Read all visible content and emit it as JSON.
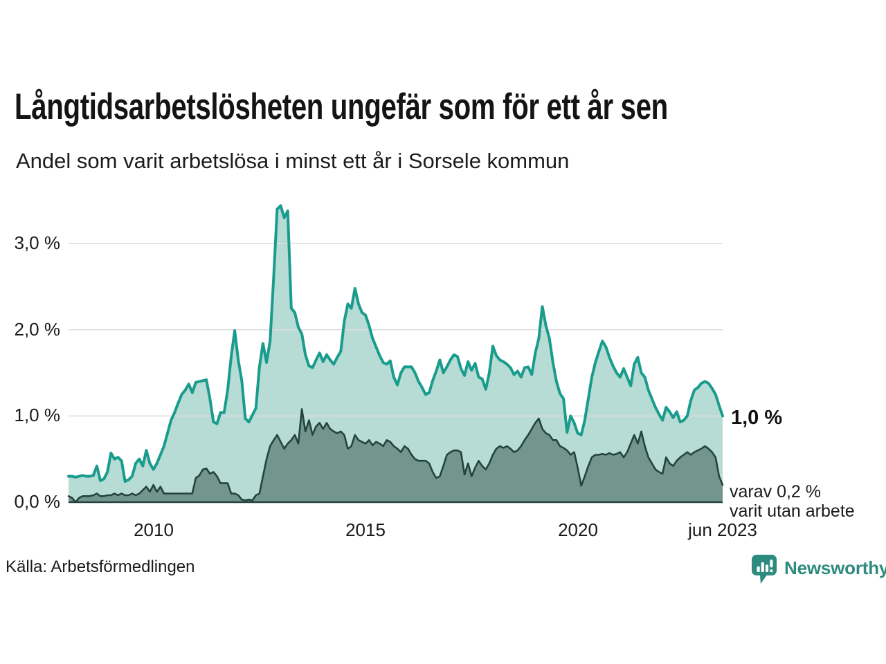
{
  "header": {
    "title": "Långtidsarbetslösheten ungefär som för ett år sen",
    "subtitle": "Andel som varit arbetslösa i minst ett år i Sorsele kommun"
  },
  "axes": {
    "y_tick_labels": [
      "3,0 %",
      "2,0 %",
      "1,0 %",
      "0,0 %"
    ],
    "x_tick_labels": [
      "2010",
      "2015",
      "2020",
      "jun 2023"
    ]
  },
  "annotations": {
    "latest_total": "1,0 %",
    "latest_sub_line1": "varav 0,2 %",
    "latest_sub_line2": "varit utan arbete"
  },
  "footer": {
    "source": "Källa: Arbetsförmedlingen",
    "brand": "Newsworthy"
  },
  "colors": {
    "total_line": "#1a9c8d",
    "total_fill": "#b7dbd5",
    "sub_line": "#25433d",
    "sub_fill": "#72968e",
    "gridline": "#dcdcdc",
    "brand_teal": "#2e8b80"
  },
  "chart_data": {
    "type": "area",
    "title": "Långtidsarbetslösheten ungefär som för ett år sen",
    "subtitle": "Andel som varit arbetslösa i minst ett år i Sorsele kommun",
    "unit": "%",
    "frequency": "monthly",
    "x_start": "2008-01",
    "x_end": "2023-06",
    "ylim": [
      0,
      3.5
    ],
    "gridlines": [
      1.0,
      2.0,
      3.0
    ],
    "grid": "horizontal-only",
    "legend_position": "none",
    "x_ticks": [
      {
        "label": "2010",
        "month_index": 24
      },
      {
        "label": "2015",
        "month_index": 84
      },
      {
        "label": "2020",
        "month_index": 144
      },
      {
        "label": "jun 2023",
        "month_index": 185
      }
    ],
    "series": [
      {
        "name": "Andel som varit arbetslösa i minst ett år",
        "end_label": "1,0 %",
        "color": "#1a9c8d",
        "fill": "#b7dbd5",
        "values": [
          0.3,
          0.3,
          0.29,
          0.3,
          0.31,
          0.3,
          0.3,
          0.31,
          0.42,
          0.25,
          0.27,
          0.35,
          0.57,
          0.5,
          0.52,
          0.48,
          0.24,
          0.26,
          0.3,
          0.45,
          0.5,
          0.42,
          0.6,
          0.45,
          0.38,
          0.45,
          0.55,
          0.65,
          0.8,
          0.95,
          1.04,
          1.15,
          1.25,
          1.3,
          1.37,
          1.27,
          1.39,
          1.4,
          1.41,
          1.42,
          1.2,
          0.93,
          0.91,
          1.04,
          1.04,
          1.3,
          1.69,
          1.99,
          1.65,
          1.41,
          0.97,
          0.93,
          1.01,
          1.09,
          1.57,
          1.84,
          1.62,
          1.87,
          2.6,
          3.4,
          3.44,
          3.3,
          3.38,
          2.25,
          2.2,
          2.03,
          1.95,
          1.71,
          1.58,
          1.56,
          1.65,
          1.73,
          1.63,
          1.71,
          1.65,
          1.6,
          1.68,
          1.75,
          2.1,
          2.3,
          2.25,
          2.48,
          2.3,
          2.2,
          2.17,
          2.05,
          1.9,
          1.8,
          1.7,
          1.62,
          1.6,
          1.64,
          1.45,
          1.36,
          1.5,
          1.57,
          1.57,
          1.57,
          1.5,
          1.4,
          1.33,
          1.25,
          1.27,
          1.41,
          1.52,
          1.65,
          1.5,
          1.57,
          1.65,
          1.71,
          1.69,
          1.55,
          1.47,
          1.63,
          1.53,
          1.61,
          1.45,
          1.43,
          1.31,
          1.5,
          1.81,
          1.7,
          1.65,
          1.63,
          1.6,
          1.56,
          1.48,
          1.52,
          1.45,
          1.56,
          1.57,
          1.48,
          1.73,
          1.9,
          2.27,
          2.05,
          1.9,
          1.62,
          1.4,
          1.26,
          1.2,
          0.81,
          1.0,
          0.92,
          0.8,
          0.78,
          0.95,
          1.2,
          1.45,
          1.62,
          1.75,
          1.87,
          1.8,
          1.68,
          1.58,
          1.5,
          1.45,
          1.55,
          1.45,
          1.35,
          1.6,
          1.68,
          1.5,
          1.45,
          1.3,
          1.2,
          1.1,
          1.02,
          0.95,
          1.1,
          1.05,
          0.98,
          1.05,
          0.93,
          0.95,
          1.0,
          1.18,
          1.3,
          1.33,
          1.38,
          1.4,
          1.38,
          1.32,
          1.25,
          1.12,
          1.0
        ]
      },
      {
        "name": "varav varit utan arbete",
        "end_label": "varav 0,2 % varit utan arbete",
        "color": "#25433d",
        "fill": "#72968e",
        "values": [
          0.07,
          0.05,
          0.0,
          0.05,
          0.07,
          0.07,
          0.07,
          0.08,
          0.1,
          0.07,
          0.07,
          0.08,
          0.08,
          0.1,
          0.08,
          0.1,
          0.08,
          0.08,
          0.1,
          0.08,
          0.1,
          0.14,
          0.18,
          0.12,
          0.2,
          0.12,
          0.18,
          0.1,
          0.1,
          0.1,
          0.1,
          0.1,
          0.1,
          0.1,
          0.1,
          0.1,
          0.28,
          0.31,
          0.38,
          0.39,
          0.33,
          0.35,
          0.3,
          0.22,
          0.22,
          0.22,
          0.1,
          0.1,
          0.08,
          0.03,
          0.02,
          0.03,
          0.02,
          0.08,
          0.1,
          0.3,
          0.5,
          0.65,
          0.72,
          0.78,
          0.7,
          0.62,
          0.68,
          0.72,
          0.78,
          0.68,
          1.08,
          0.82,
          0.95,
          0.78,
          0.88,
          0.92,
          0.85,
          0.92,
          0.85,
          0.82,
          0.8,
          0.82,
          0.78,
          0.62,
          0.65,
          0.78,
          0.72,
          0.7,
          0.68,
          0.72,
          0.66,
          0.7,
          0.68,
          0.65,
          0.72,
          0.7,
          0.65,
          0.62,
          0.58,
          0.65,
          0.62,
          0.55,
          0.5,
          0.48,
          0.48,
          0.48,
          0.45,
          0.35,
          0.28,
          0.3,
          0.42,
          0.55,
          0.58,
          0.6,
          0.6,
          0.58,
          0.32,
          0.45,
          0.3,
          0.4,
          0.48,
          0.42,
          0.38,
          0.45,
          0.55,
          0.62,
          0.65,
          0.63,
          0.65,
          0.62,
          0.58,
          0.6,
          0.65,
          0.72,
          0.78,
          0.85,
          0.92,
          0.97,
          0.85,
          0.8,
          0.78,
          0.72,
          0.72,
          0.65,
          0.63,
          0.6,
          0.55,
          0.58,
          0.4,
          0.19,
          0.3,
          0.42,
          0.52,
          0.55,
          0.55,
          0.56,
          0.55,
          0.57,
          0.55,
          0.56,
          0.58,
          0.52,
          0.58,
          0.68,
          0.78,
          0.68,
          0.82,
          0.65,
          0.52,
          0.45,
          0.38,
          0.35,
          0.33,
          0.52,
          0.45,
          0.42,
          0.48,
          0.52,
          0.55,
          0.58,
          0.55,
          0.58,
          0.6,
          0.62,
          0.65,
          0.62,
          0.58,
          0.52,
          0.3,
          0.2
        ]
      }
    ]
  }
}
